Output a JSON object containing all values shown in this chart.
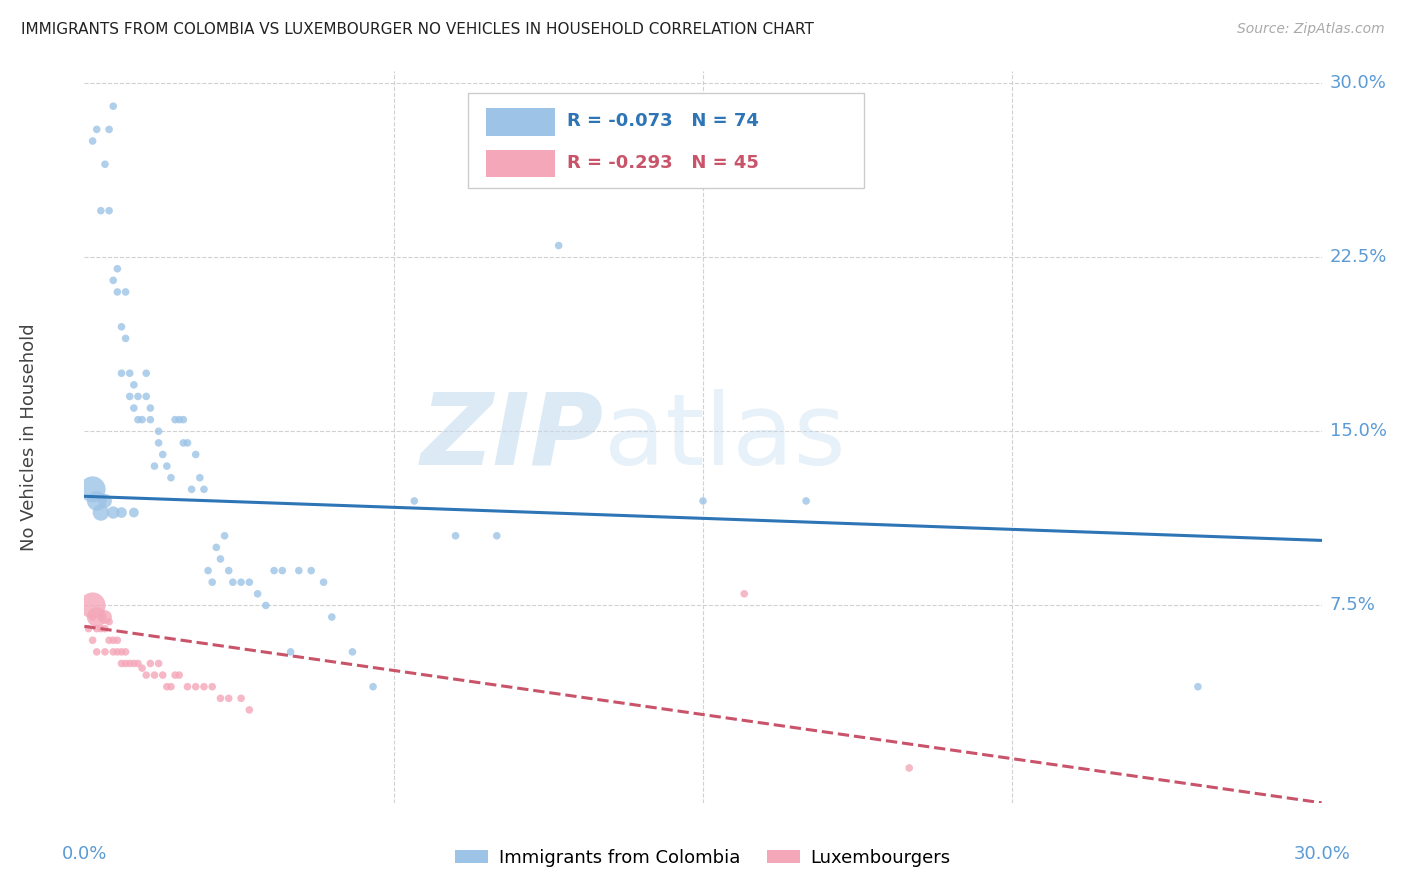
{
  "title": "IMMIGRANTS FROM COLOMBIA VS LUXEMBOURGER NO VEHICLES IN HOUSEHOLD CORRELATION CHART",
  "source": "Source: ZipAtlas.com",
  "ylabel": "No Vehicles in Household",
  "colombia_R": -0.073,
  "colombia_N": 74,
  "luxembourg_R": -0.293,
  "luxembourg_N": 45,
  "colombia_color": "#9DC3E6",
  "luxembourg_color": "#F4A7B9",
  "colombia_line_color": "#2E75B6",
  "luxembourg_line_color": "#C9546A",
  "legend_label_colombia": "Immigrants from Colombia",
  "legend_label_luxembourg": "Luxembourgers",
  "watermark_zip": "ZIP",
  "watermark_atlas": "atlas",
  "background_color": "#FFFFFF",
  "grid_color": "#CCCCCC",
  "axis_label_color": "#5B9BD5",
  "xmin": 0.0,
  "xmax": 0.3,
  "ymin": -0.01,
  "ymax": 0.305,
  "yticks": [
    0.0,
    0.075,
    0.15,
    0.225,
    0.3
  ],
  "ytick_labels": [
    "",
    "7.5%",
    "15.0%",
    "22.5%",
    "30.0%"
  ],
  "xtick_positions": [
    0.0,
    0.075,
    0.15,
    0.225,
    0.3
  ],
  "col_trend_x": [
    0.0,
    0.3
  ],
  "col_trend_y": [
    0.122,
    0.103
  ],
  "lux_trend_x": [
    0.0,
    0.3
  ],
  "lux_trend_y": [
    0.066,
    -0.01
  ],
  "colombia_x": [
    0.002,
    0.003,
    0.004,
    0.005,
    0.006,
    0.006,
    0.007,
    0.007,
    0.008,
    0.008,
    0.009,
    0.009,
    0.01,
    0.01,
    0.011,
    0.011,
    0.012,
    0.012,
    0.013,
    0.013,
    0.014,
    0.015,
    0.015,
    0.016,
    0.016,
    0.017,
    0.018,
    0.018,
    0.019,
    0.02,
    0.021,
    0.022,
    0.023,
    0.024,
    0.024,
    0.025,
    0.026,
    0.027,
    0.028,
    0.029,
    0.03,
    0.031,
    0.032,
    0.033,
    0.034,
    0.035,
    0.036,
    0.038,
    0.04,
    0.042,
    0.044,
    0.046,
    0.048,
    0.05,
    0.052,
    0.055,
    0.058,
    0.06,
    0.065,
    0.07,
    0.08,
    0.09,
    0.1,
    0.115,
    0.15,
    0.175,
    0.27,
    0.002,
    0.003,
    0.004,
    0.005,
    0.007,
    0.009,
    0.012
  ],
  "colombia_y": [
    0.275,
    0.28,
    0.245,
    0.265,
    0.245,
    0.28,
    0.29,
    0.215,
    0.21,
    0.22,
    0.175,
    0.195,
    0.19,
    0.21,
    0.175,
    0.165,
    0.16,
    0.17,
    0.155,
    0.165,
    0.155,
    0.165,
    0.175,
    0.16,
    0.155,
    0.135,
    0.15,
    0.145,
    0.14,
    0.135,
    0.13,
    0.155,
    0.155,
    0.155,
    0.145,
    0.145,
    0.125,
    0.14,
    0.13,
    0.125,
    0.09,
    0.085,
    0.1,
    0.095,
    0.105,
    0.09,
    0.085,
    0.085,
    0.085,
    0.08,
    0.075,
    0.09,
    0.09,
    0.055,
    0.09,
    0.09,
    0.085,
    0.07,
    0.055,
    0.04,
    0.12,
    0.105,
    0.105,
    0.23,
    0.12,
    0.12,
    0.04,
    0.125,
    0.12,
    0.115,
    0.12,
    0.115,
    0.115,
    0.115
  ],
  "colombia_sizes": [
    30,
    30,
    30,
    30,
    30,
    30,
    30,
    30,
    30,
    30,
    30,
    30,
    30,
    30,
    30,
    30,
    30,
    30,
    30,
    30,
    30,
    30,
    30,
    30,
    30,
    30,
    30,
    30,
    30,
    30,
    30,
    30,
    30,
    30,
    30,
    30,
    30,
    30,
    30,
    30,
    30,
    30,
    30,
    30,
    30,
    30,
    30,
    30,
    30,
    30,
    30,
    30,
    30,
    30,
    30,
    30,
    30,
    30,
    30,
    30,
    30,
    30,
    30,
    30,
    30,
    30,
    30,
    350,
    200,
    140,
    100,
    80,
    60,
    50
  ],
  "luxembourg_x": [
    0.001,
    0.002,
    0.002,
    0.003,
    0.003,
    0.004,
    0.004,
    0.005,
    0.005,
    0.006,
    0.006,
    0.007,
    0.007,
    0.008,
    0.008,
    0.009,
    0.009,
    0.01,
    0.01,
    0.011,
    0.012,
    0.013,
    0.014,
    0.015,
    0.016,
    0.017,
    0.018,
    0.019,
    0.02,
    0.021,
    0.022,
    0.023,
    0.025,
    0.027,
    0.029,
    0.031,
    0.033,
    0.035,
    0.038,
    0.04,
    0.16,
    0.2,
    0.002,
    0.003,
    0.005
  ],
  "luxembourg_y": [
    0.065,
    0.06,
    0.07,
    0.055,
    0.065,
    0.065,
    0.07,
    0.055,
    0.065,
    0.06,
    0.068,
    0.055,
    0.06,
    0.055,
    0.06,
    0.05,
    0.055,
    0.05,
    0.055,
    0.05,
    0.05,
    0.05,
    0.048,
    0.045,
    0.05,
    0.045,
    0.05,
    0.045,
    0.04,
    0.04,
    0.045,
    0.045,
    0.04,
    0.04,
    0.04,
    0.04,
    0.035,
    0.035,
    0.035,
    0.03,
    0.08,
    0.005,
    0.075,
    0.07,
    0.07
  ],
  "luxembourg_sizes": [
    30,
    30,
    30,
    30,
    30,
    30,
    30,
    30,
    30,
    30,
    30,
    30,
    30,
    30,
    30,
    30,
    30,
    30,
    30,
    30,
    30,
    30,
    30,
    30,
    30,
    30,
    30,
    30,
    30,
    30,
    30,
    30,
    30,
    30,
    30,
    30,
    30,
    30,
    30,
    30,
    30,
    30,
    350,
    200,
    100
  ]
}
